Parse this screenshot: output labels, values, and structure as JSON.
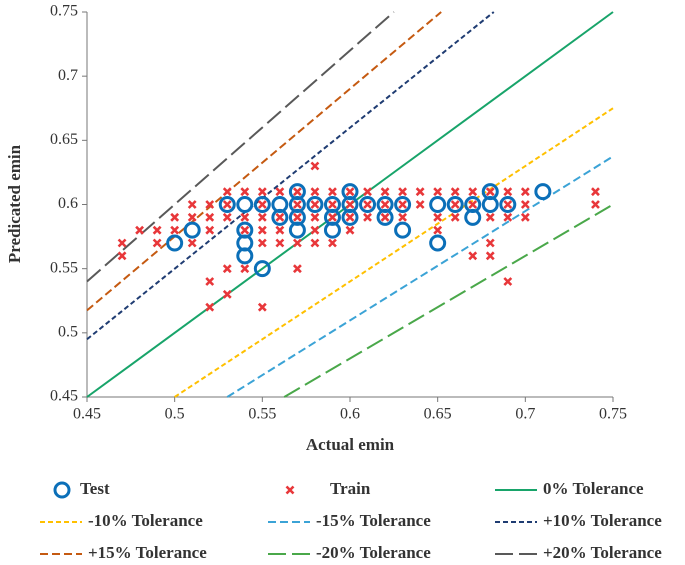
{
  "chart_data": {
    "type": "scatter",
    "xlabel": "Actual emin",
    "ylabel": "Predicated emin",
    "xlim": [
      0.45,
      0.75
    ],
    "ylim": [
      0.45,
      0.75
    ],
    "xticks": [
      0.45,
      0.5,
      0.55,
      0.6,
      0.65,
      0.7,
      0.75
    ],
    "yticks": [
      0.45,
      0.5,
      0.55,
      0.6,
      0.65,
      0.7,
      0.75
    ],
    "series": [
      {
        "name": "Test",
        "color": "#0b6fb8",
        "marker": "circle",
        "x": [
          0.5,
          0.51,
          0.53,
          0.54,
          0.54,
          0.54,
          0.54,
          0.55,
          0.55,
          0.56,
          0.56,
          0.57,
          0.57,
          0.57,
          0.57,
          0.58,
          0.59,
          0.59,
          0.59,
          0.6,
          0.6,
          0.6,
          0.61,
          0.62,
          0.62,
          0.63,
          0.63,
          0.65,
          0.65,
          0.66,
          0.67,
          0.67,
          0.68,
          0.68,
          0.69,
          0.71
        ],
        "values": [
          0.57,
          0.58,
          0.6,
          0.6,
          0.57,
          0.56,
          0.58,
          0.55,
          0.6,
          0.6,
          0.59,
          0.61,
          0.6,
          0.59,
          0.58,
          0.6,
          0.6,
          0.59,
          0.58,
          0.61,
          0.6,
          0.59,
          0.6,
          0.6,
          0.59,
          0.6,
          0.58,
          0.57,
          0.6,
          0.6,
          0.6,
          0.59,
          0.61,
          0.6,
          0.6,
          0.61
        ]
      },
      {
        "name": "Train",
        "color": "#e8373a",
        "marker": "x",
        "x": [
          0.47,
          0.47,
          0.48,
          0.49,
          0.49,
          0.5,
          0.5,
          0.51,
          0.51,
          0.51,
          0.52,
          0.52,
          0.52,
          0.52,
          0.52,
          0.53,
          0.53,
          0.53,
          0.53,
          0.53,
          0.54,
          0.54,
          0.54,
          0.54,
          0.55,
          0.55,
          0.55,
          0.55,
          0.55,
          0.55,
          0.56,
          0.56,
          0.56,
          0.56,
          0.57,
          0.57,
          0.57,
          0.57,
          0.57,
          0.58,
          0.58,
          0.58,
          0.58,
          0.58,
          0.58,
          0.59,
          0.59,
          0.59,
          0.59,
          0.6,
          0.6,
          0.6,
          0.6,
          0.61,
          0.61,
          0.61,
          0.62,
          0.62,
          0.62,
          0.63,
          0.63,
          0.63,
          0.64,
          0.64,
          0.65,
          0.65,
          0.65,
          0.66,
          0.66,
          0.66,
          0.67,
          0.67,
          0.67,
          0.68,
          0.68,
          0.68,
          0.68,
          0.69,
          0.69,
          0.69,
          0.69,
          0.7,
          0.7,
          0.7,
          0.74,
          0.74
        ],
        "values": [
          0.57,
          0.56,
          0.58,
          0.58,
          0.57,
          0.59,
          0.58,
          0.6,
          0.59,
          0.57,
          0.6,
          0.59,
          0.58,
          0.54,
          0.52,
          0.61,
          0.6,
          0.59,
          0.55,
          0.53,
          0.61,
          0.59,
          0.58,
          0.55,
          0.61,
          0.6,
          0.59,
          0.58,
          0.57,
          0.52,
          0.61,
          0.59,
          0.58,
          0.57,
          0.61,
          0.6,
          0.59,
          0.57,
          0.55,
          0.63,
          0.61,
          0.6,
          0.59,
          0.58,
          0.57,
          0.61,
          0.6,
          0.59,
          0.57,
          0.61,
          0.6,
          0.59,
          0.58,
          0.61,
          0.6,
          0.59,
          0.61,
          0.6,
          0.59,
          0.61,
          0.6,
          0.59,
          0.61,
          0.6,
          0.61,
          0.59,
          0.58,
          0.61,
          0.6,
          0.59,
          0.61,
          0.6,
          0.56,
          0.61,
          0.59,
          0.57,
          0.56,
          0.61,
          0.6,
          0.59,
          0.54,
          0.61,
          0.6,
          0.59,
          0.61,
          0.6
        ]
      },
      {
        "name": "0% Tolerance",
        "color": "#18a46a",
        "dash": "solid",
        "x": [
          0.45,
          0.75
        ],
        "values": [
          0.45,
          0.75
        ]
      },
      {
        "name": "-10% Tolerance",
        "color": "#ffc000",
        "dash": "short",
        "x": [
          0.5,
          0.75
        ],
        "values": [
          0.45,
          0.675
        ]
      },
      {
        "name": "-15% Tolerance",
        "color": "#3ba3d6",
        "dash": "medium",
        "x": [
          0.53,
          0.75
        ],
        "values": [
          0.45,
          0.6375
        ]
      },
      {
        "name": "+10% Tolerance",
        "color": "#1f3c72",
        "dash": "short",
        "x": [
          0.45,
          0.682
        ],
        "values": [
          0.495,
          0.75
        ]
      },
      {
        "name": "+15% Tolerance",
        "color": "#c55a11",
        "dash": "medium",
        "x": [
          0.45,
          0.652
        ],
        "values": [
          0.5175,
          0.75
        ]
      },
      {
        "name": "-20% Tolerance",
        "color": "#4aa84a",
        "dash": "long",
        "x": [
          0.5625,
          0.75
        ],
        "values": [
          0.45,
          0.6
        ]
      },
      {
        "name": "+20% Tolerance",
        "color": "#595959",
        "dash": "long",
        "x": [
          0.45,
          0.625
        ],
        "values": [
          0.54,
          0.75
        ]
      }
    ]
  }
}
